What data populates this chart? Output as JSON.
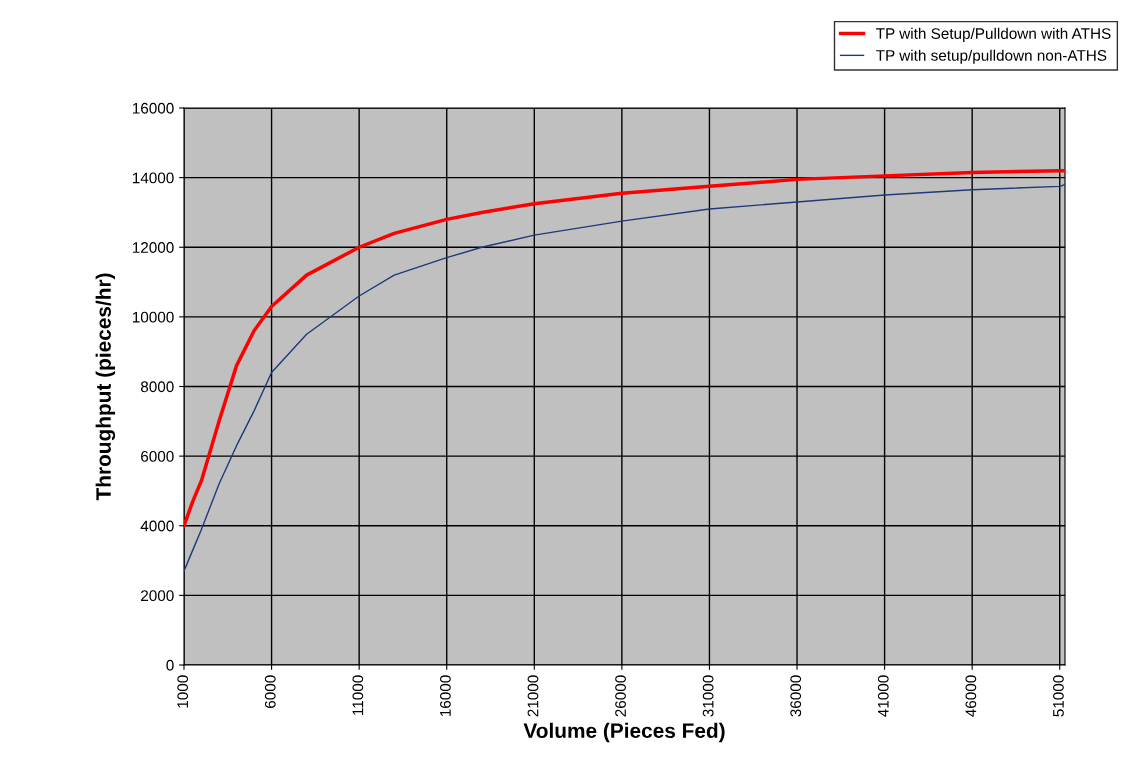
{
  "chart_data": {
    "type": "line",
    "xlabel": "Volume (Pieces Fed)",
    "ylabel": "Throughput (pieces/hr)",
    "xlim": [
      1000,
      51300
    ],
    "xticks": [
      1000,
      6000,
      11000,
      16000,
      21000,
      26000,
      31000,
      36000,
      41000,
      46000,
      51000
    ],
    "ylim": [
      0,
      16000
    ],
    "yticks": [
      0,
      2000,
      4000,
      6000,
      8000,
      10000,
      12000,
      14000,
      16000
    ],
    "grid": true,
    "legend": "top right",
    "marker": "none",
    "line_style": "solid",
    "series": [
      {
        "name": "TP with Setup/Pulldown with ATHS",
        "color": "#ff0000",
        "x": [
          1000,
          1500,
          2000,
          3000,
          4000,
          5000,
          6000,
          8000,
          11000,
          13000,
          16000,
          18000,
          21000,
          26000,
          31000,
          36000,
          41000,
          46000,
          51000,
          51300
        ],
        "values": [
          4000,
          4700,
          5300,
          7000,
          8600,
          9600,
          10300,
          11200,
          12000,
          12400,
          12800,
          13000,
          13250,
          13550,
          13750,
          13950,
          14050,
          14150,
          14200,
          14200
        ]
      },
      {
        "name": "TP with setup/pulldown non-ATHS",
        "color": "#1f3a7a",
        "x": [
          1000,
          1500,
          2000,
          3000,
          4000,
          5000,
          6000,
          8000,
          11000,
          13000,
          16000,
          18000,
          21000,
          26000,
          31000,
          36000,
          41000,
          46000,
          51000,
          51300
        ],
        "values": [
          2700,
          3300,
          3900,
          5200,
          6300,
          7300,
          8400,
          9500,
          10600,
          11200,
          11700,
          12000,
          12350,
          12750,
          13100,
          13300,
          13500,
          13650,
          13750,
          13800
        ]
      }
    ]
  }
}
